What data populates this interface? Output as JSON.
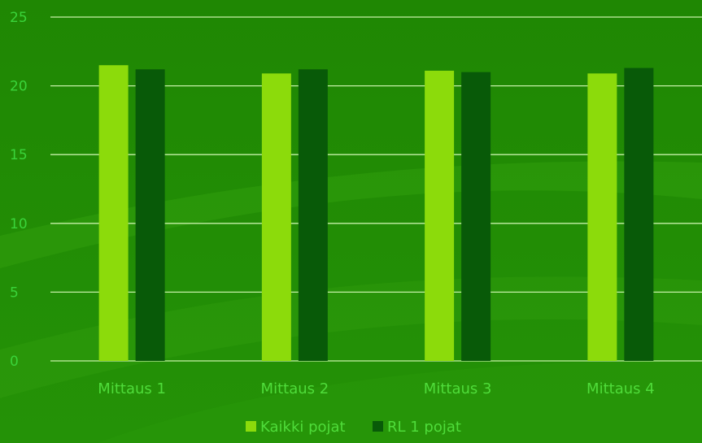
{
  "colors": {
    "background_top": "#1f8a04",
    "background_bottom": "#2a9a08",
    "gridline": "#c6f0a8",
    "series_1": "#8cdb0b",
    "series_2": "#085a08",
    "text": "#4fdc3a"
  },
  "chart_data": {
    "type": "bar",
    "title": "",
    "xlabel": "",
    "ylabel": "",
    "categories": [
      "Mittaus 1",
      "Mittaus 2",
      "Mittaus 3",
      "Mittaus 4"
    ],
    "series": [
      {
        "name": "Kaikki pojat",
        "values": [
          21.5,
          20.9,
          21.1,
          20.9
        ]
      },
      {
        "name": "RL 1 pojat",
        "values": [
          21.2,
          21.2,
          21.0,
          21.3
        ]
      }
    ],
    "ylim": [
      0,
      25
    ],
    "yticks": [
      0,
      5,
      10,
      15,
      20,
      25
    ],
    "grid": true,
    "legend_position": "bottom"
  }
}
